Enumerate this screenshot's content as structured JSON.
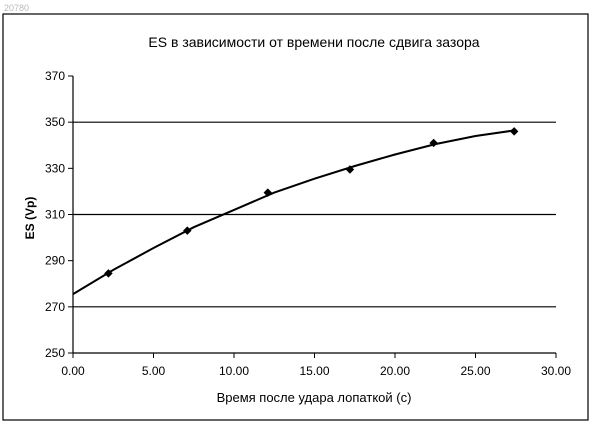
{
  "watermark": "20780",
  "chart_data": {
    "type": "scatter",
    "title": "ES в зависимости от времени после сдвига зазора",
    "xlabel": "Время после удара лопаткой (с)",
    "ylabel": "ES (Vp)",
    "xlim": [
      0,
      30
    ],
    "ylim": [
      250,
      370
    ],
    "x_ticks": [
      "0.00",
      "5.00",
      "10.00",
      "15.00",
      "20.00",
      "25.00",
      "30.00"
    ],
    "y_ticks": [
      "250",
      "270",
      "290",
      "310",
      "330",
      "350",
      "370"
    ],
    "gridlines_y": [
      270,
      310,
      350
    ],
    "legend": "none",
    "series": [
      {
        "x": [
          2.2,
          7.1,
          12.1,
          17.2,
          22.4,
          27.4
        ],
        "y": [
          284.5,
          303,
          319.5,
          329.5,
          341,
          346
        ],
        "trendline": {
          "x": [
            0,
            2.5,
            5,
            7.5,
            10,
            12.5,
            15,
            17.5,
            20,
            22.5,
            25,
            27.5
          ],
          "y": [
            275.5,
            286,
            295.5,
            304.5,
            312,
            319.5,
            325.5,
            331,
            336,
            340.5,
            344,
            346.5
          ]
        }
      }
    ]
  }
}
